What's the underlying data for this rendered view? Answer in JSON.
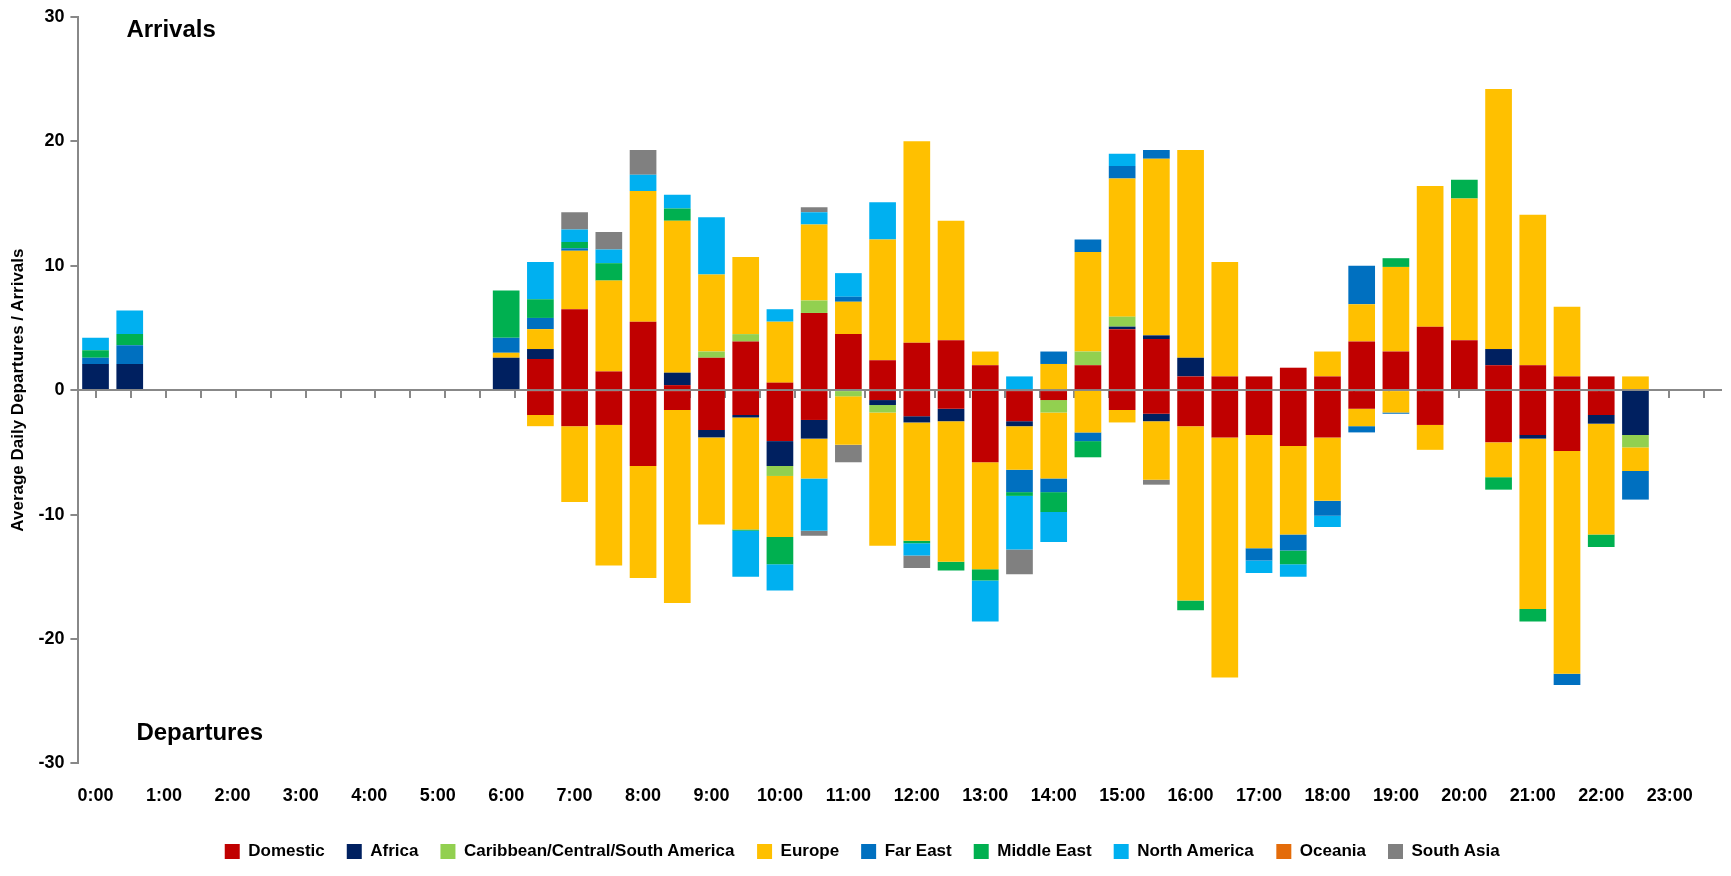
{
  "chart_data": {
    "type": "bar",
    "stacked": true,
    "ylabel": "Average Daily Departures / Arrivals",
    "annotations": [
      "Arrivals",
      "Departures"
    ],
    "categories": [
      "0:00",
      null,
      "1:00",
      null,
      "2:00",
      null,
      "3:00",
      null,
      "4:00",
      null,
      "5:00",
      null,
      "6:00",
      null,
      "7:00",
      null,
      "8:00",
      null,
      "9:00",
      null,
      "10:00",
      null,
      "11:00",
      null,
      "12:00",
      null,
      "13:00",
      null,
      "14:00",
      null,
      "15:00",
      null,
      "16:00",
      null,
      "17:00",
      null,
      "18:00",
      null,
      "19:00",
      null,
      "20:00",
      null,
      "21:00",
      null,
      "22:00",
      null,
      "23:00",
      null
    ],
    "ylim": [
      -30,
      30
    ],
    "yticks": [
      -30,
      -20,
      -10,
      0,
      10,
      20,
      30
    ],
    "legend": "bottom",
    "series": [
      {
        "name": "Domestic",
        "color": "#c00000",
        "values": [
          null,
          null,
          null,
          null,
          null,
          null,
          null,
          null,
          null,
          null,
          null,
          null,
          null,
          2.5,
          6.5,
          1.5,
          5.5,
          0.4,
          2.6,
          3.9,
          0.6,
          6.2,
          4.5,
          2.4,
          3.8,
          4.0,
          2.0,
          null,
          null,
          2.0,
          4.9,
          4.1,
          1.1,
          1.1,
          1.1,
          1.8,
          1.1,
          3.9,
          3.1,
          5.1,
          4.0,
          2.0,
          2.0,
          1.1,
          1.1,
          null,
          null,
          null
        ]
      },
      {
        "name": "Africa",
        "color": "#002060",
        "values": [
          2.1,
          2.1,
          null,
          null,
          null,
          null,
          null,
          null,
          null,
          null,
          null,
          null,
          2.6,
          0.8,
          null,
          null,
          null,
          1.0,
          null,
          null,
          null,
          null,
          null,
          null,
          null,
          null,
          null,
          null,
          null,
          null,
          0.2,
          0.3,
          1.5,
          null,
          null,
          null,
          null,
          null,
          null,
          null,
          null,
          1.3,
          null,
          null,
          null,
          null,
          null,
          null
        ]
      },
      {
        "name": "Caribbean/Central/South America",
        "color": "#92d050",
        "values": [
          null,
          null,
          null,
          null,
          null,
          null,
          null,
          null,
          null,
          null,
          null,
          null,
          null,
          null,
          null,
          null,
          null,
          null,
          0.5,
          0.6,
          null,
          1.0,
          null,
          null,
          null,
          null,
          null,
          null,
          null,
          1.1,
          0.8,
          null,
          null,
          null,
          null,
          null,
          null,
          null,
          null,
          null,
          null,
          null,
          null,
          null,
          null,
          null,
          null,
          null
        ]
      },
      {
        "name": "Europe",
        "color": "#ffc000",
        "values": [
          null,
          null,
          null,
          null,
          null,
          null,
          null,
          null,
          null,
          null,
          null,
          null,
          0.4,
          1.6,
          4.7,
          7.3,
          10.5,
          12.2,
          6.2,
          6.2,
          4.9,
          6.1,
          2.6,
          9.7,
          16.2,
          9.6,
          1.1,
          null,
          2.1,
          8.0,
          11.1,
          14.2,
          16.7,
          9.2,
          null,
          null,
          2.0,
          3.0,
          6.8,
          11.3,
          11.4,
          20.9,
          12.1,
          5.6,
          null,
          1.1,
          null,
          null
        ]
      },
      {
        "name": "Far East",
        "color": "#0070c0",
        "values": [
          0.5,
          1.5,
          null,
          null,
          null,
          null,
          null,
          null,
          null,
          null,
          null,
          null,
          1.2,
          0.9,
          0.2,
          null,
          null,
          null,
          null,
          null,
          null,
          null,
          0.4,
          null,
          null,
          null,
          null,
          null,
          1.0,
          1.0,
          1.0,
          0.7,
          null,
          null,
          null,
          null,
          null,
          3.1,
          null,
          null,
          null,
          null,
          null,
          null,
          null,
          null,
          null,
          null
        ]
      },
      {
        "name": "Middle East",
        "color": "#00b050",
        "values": [
          0.6,
          0.9,
          null,
          null,
          null,
          null,
          null,
          null,
          null,
          null,
          null,
          null,
          3.8,
          1.5,
          0.5,
          1.4,
          null,
          1.0,
          null,
          null,
          null,
          null,
          null,
          null,
          null,
          null,
          null,
          null,
          null,
          null,
          null,
          null,
          null,
          null,
          null,
          null,
          null,
          null,
          0.7,
          null,
          1.5,
          null,
          null,
          null,
          null,
          null,
          null,
          null
        ]
      },
      {
        "name": "North America",
        "color": "#00b0f0",
        "values": [
          1.0,
          1.9,
          null,
          null,
          null,
          null,
          null,
          null,
          null,
          null,
          null,
          null,
          null,
          3.0,
          1.0,
          1.1,
          1.3,
          1.1,
          4.6,
          null,
          1.0,
          1.0,
          1.9,
          3.0,
          null,
          null,
          null,
          1.1,
          null,
          null,
          1.0,
          null,
          null,
          null,
          null,
          null,
          null,
          null,
          null,
          null,
          null,
          null,
          null,
          null,
          null,
          null,
          null,
          null
        ]
      },
      {
        "name": "Oceania",
        "color": "#e46c0a",
        "values": [
          null,
          null,
          null,
          null,
          null,
          null,
          null,
          null,
          null,
          null,
          null,
          null,
          null,
          null,
          null,
          null,
          null,
          null,
          null,
          null,
          null,
          null,
          null,
          null,
          null,
          null,
          null,
          null,
          null,
          null,
          null,
          null,
          null,
          null,
          null,
          null,
          null,
          null,
          null,
          null,
          null,
          null,
          null,
          null,
          null,
          null,
          null,
          null
        ]
      },
      {
        "name": "South Asia",
        "color": "#808080",
        "values": [
          null,
          null,
          null,
          null,
          null,
          null,
          null,
          null,
          null,
          null,
          null,
          null,
          null,
          null,
          1.4,
          1.4,
          2.0,
          null,
          null,
          null,
          null,
          0.4,
          null,
          null,
          null,
          null,
          null,
          null,
          null,
          null,
          null,
          null,
          null,
          null,
          null,
          null,
          null,
          null,
          null,
          null,
          null,
          null,
          null,
          null,
          null,
          null,
          null,
          null
        ]
      },
      {
        "color": "#c00000",
        "values": [
          null,
          null,
          null,
          null,
          null,
          null,
          null,
          null,
          null,
          null,
          null,
          null,
          null,
          -2.0,
          -2.9,
          -2.8,
          -6.1,
          -1.6,
          -3.2,
          -2.0,
          -4.1,
          -2.4,
          null,
          -0.8,
          -2.1,
          -1.5,
          -5.8,
          -2.5,
          -0.8,
          null,
          -1.6,
          -1.9,
          -2.9,
          -3.8,
          -3.6,
          -4.5,
          -3.8,
          -1.5,
          null,
          -2.8,
          null,
          -4.2,
          -3.6,
          -4.9,
          -2.0,
          null,
          null,
          null
        ]
      },
      {
        "color": "#002060",
        "values": [
          null,
          null,
          null,
          null,
          null,
          null,
          null,
          null,
          null,
          null,
          null,
          null,
          null,
          null,
          null,
          null,
          null,
          null,
          -0.6,
          -0.2,
          -2.0,
          -1.5,
          null,
          -0.4,
          -0.5,
          -1.0,
          null,
          -0.4,
          null,
          null,
          null,
          -0.6,
          null,
          null,
          null,
          null,
          null,
          null,
          null,
          null,
          null,
          null,
          -0.3,
          null,
          -0.7,
          -3.6,
          null,
          null
        ]
      },
      {
        "color": "#92d050",
        "values": [
          null,
          null,
          null,
          null,
          null,
          null,
          null,
          null,
          null,
          null,
          null,
          null,
          null,
          null,
          null,
          null,
          null,
          null,
          null,
          null,
          -0.8,
          null,
          -0.5,
          -0.6,
          null,
          null,
          null,
          null,
          -1.0,
          null,
          null,
          null,
          null,
          null,
          null,
          null,
          null,
          null,
          null,
          null,
          null,
          null,
          null,
          null,
          null,
          -1.0,
          null,
          null
        ]
      },
      {
        "color": "#ffc000",
        "values": [
          null,
          null,
          null,
          null,
          null,
          null,
          null,
          null,
          null,
          null,
          null,
          null,
          null,
          -0.9,
          -6.1,
          -11.3,
          -9.0,
          -15.5,
          -7.0,
          -9.0,
          -4.9,
          -3.2,
          -3.9,
          -10.7,
          -9.5,
          -11.3,
          -8.6,
          -3.5,
          -5.3,
          -3.4,
          -1.0,
          -4.7,
          -14.0,
          -19.3,
          -9.1,
          -7.1,
          -5.1,
          -1.4,
          -1.8,
          -2.0,
          null,
          -2.8,
          -13.7,
          -17.9,
          -8.9,
          -1.9,
          null,
          null
        ]
      },
      {
        "color": "#0070c0",
        "values": [
          null,
          null,
          null,
          null,
          null,
          null,
          null,
          null,
          null,
          null,
          null,
          null,
          null,
          null,
          null,
          null,
          null,
          null,
          null,
          null,
          null,
          null,
          null,
          null,
          null,
          null,
          null,
          -1.8,
          -1.1,
          -0.7,
          null,
          null,
          null,
          null,
          -1.0,
          -1.3,
          -1.2,
          -0.5,
          -0.1,
          null,
          null,
          null,
          null,
          -0.9,
          null,
          -2.3,
          null,
          null
        ]
      },
      {
        "color": "#00b050",
        "values": [
          null,
          null,
          null,
          null,
          null,
          null,
          null,
          null,
          null,
          null,
          null,
          null,
          null,
          null,
          null,
          null,
          null,
          null,
          null,
          -0.1,
          -2.2,
          null,
          null,
          null,
          -0.2,
          -0.7,
          -0.9,
          -0.3,
          -1.6,
          -1.3,
          null,
          null,
          -0.8,
          null,
          null,
          -1.1,
          null,
          null,
          null,
          null,
          null,
          -1.0,
          -1.0,
          null,
          -1.0,
          null,
          null,
          null
        ]
      },
      {
        "color": "#00b0f0",
        "values": [
          null,
          null,
          null,
          null,
          null,
          null,
          null,
          null,
          null,
          null,
          null,
          null,
          null,
          null,
          null,
          null,
          null,
          null,
          null,
          -3.7,
          -2.1,
          -4.2,
          null,
          null,
          -1.0,
          null,
          -3.3,
          -4.3,
          -2.4,
          null,
          null,
          null,
          null,
          null,
          -1.0,
          -1.0,
          -0.9,
          null,
          null,
          null,
          null,
          null,
          null,
          null,
          null,
          null,
          null,
          null
        ]
      },
      {
        "color": "#808080",
        "values": [
          null,
          null,
          null,
          null,
          null,
          null,
          null,
          null,
          null,
          null,
          null,
          null,
          null,
          null,
          null,
          null,
          null,
          null,
          null,
          null,
          null,
          -0.4,
          -1.4,
          null,
          -1.0,
          null,
          null,
          -2.0,
          null,
          null,
          null,
          -0.4,
          null,
          null,
          null,
          null,
          null,
          null,
          null,
          null,
          null,
          null,
          null,
          null,
          null,
          null,
          null,
          null
        ]
      }
    ]
  }
}
